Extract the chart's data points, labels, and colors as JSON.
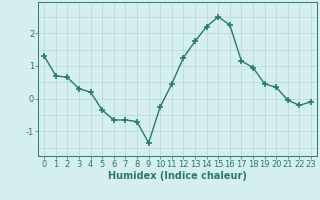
{
  "x": [
    0,
    1,
    2,
    3,
    4,
    5,
    6,
    7,
    8,
    9,
    10,
    11,
    12,
    13,
    14,
    15,
    16,
    17,
    18,
    19,
    20,
    21,
    22,
    23
  ],
  "y": [
    1.3,
    0.7,
    0.65,
    0.3,
    0.2,
    -0.35,
    -0.65,
    -0.65,
    -0.7,
    -1.35,
    -0.25,
    0.45,
    1.25,
    1.75,
    2.2,
    2.5,
    2.25,
    1.15,
    0.95,
    0.45,
    0.35,
    -0.05,
    -0.2,
    -0.1
  ],
  "line_color": "#2a7a6a",
  "marker": "+",
  "marker_size": 4,
  "marker_lw": 1.2,
  "line_width": 1.0,
  "bg_color": "#d4efed",
  "grid_color": "#b8ddd8",
  "xlabel": "Humidex (Indice chaleur)",
  "ylabel": "",
  "xlim": [
    -0.5,
    23.5
  ],
  "ylim": [
    -1.75,
    2.95
  ],
  "yticks": [
    -1,
    0,
    1,
    2
  ],
  "xticks": [
    0,
    1,
    2,
    3,
    4,
    5,
    6,
    7,
    8,
    9,
    10,
    11,
    12,
    13,
    14,
    15,
    16,
    17,
    18,
    19,
    20,
    21,
    22,
    23
  ],
  "tick_fontsize": 6,
  "xlabel_fontsize": 7,
  "spine_color": "#2a7a6a",
  "text_color": "#2a7a6a"
}
